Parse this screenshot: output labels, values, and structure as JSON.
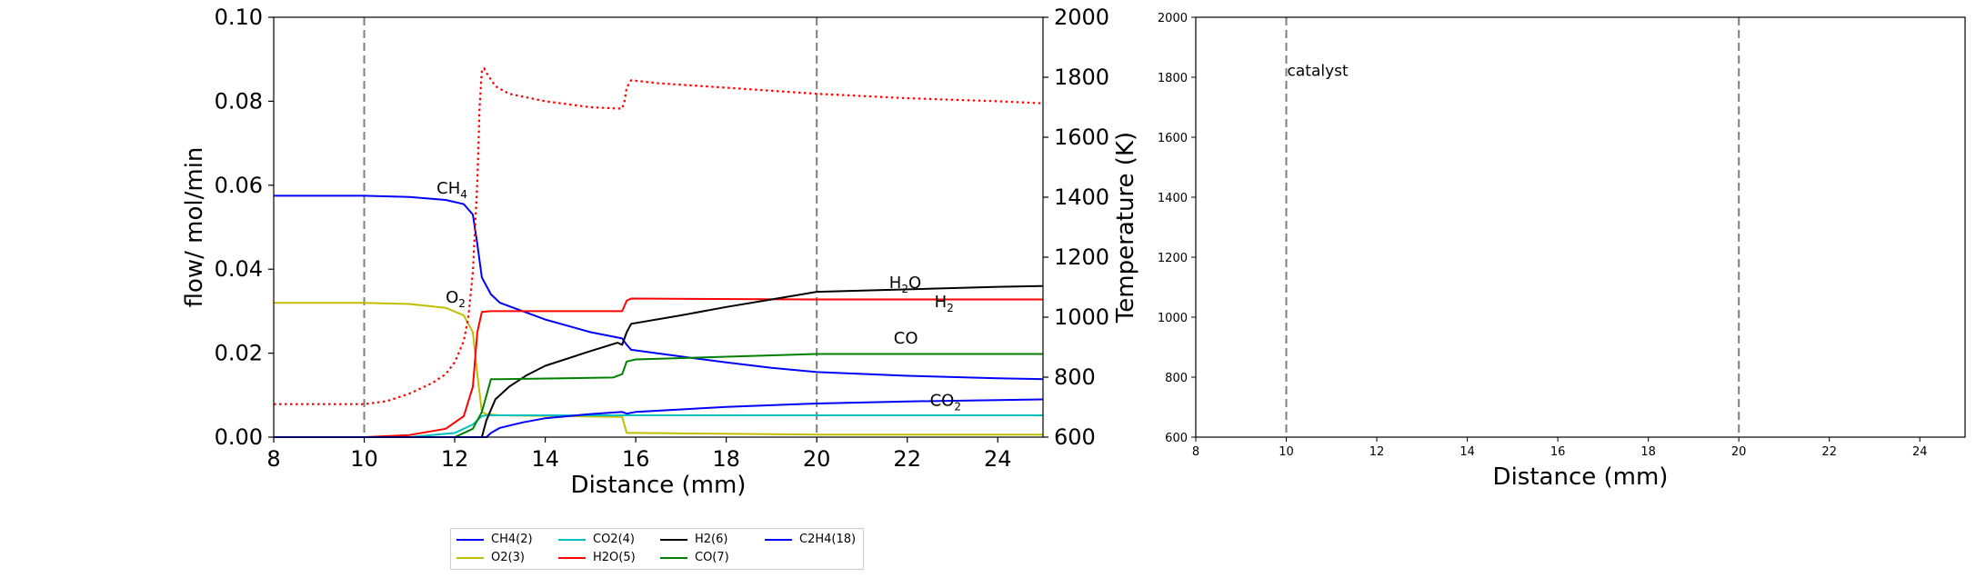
{
  "chart_data": [
    {
      "type": "line",
      "title": "",
      "xlabel": "Distance (mm)",
      "ylabel": "flow/ mol/min",
      "y2label": "Temperature (K)",
      "xlim": [
        8,
        25
      ],
      "ylim": [
        0,
        0.1
      ],
      "y2lim": [
        600,
        2000
      ],
      "xticks": [
        "8",
        "10",
        "12",
        "14",
        "16",
        "18",
        "20",
        "22",
        "24"
      ],
      "yticks": [
        "0.00",
        "0.02",
        "0.04",
        "0.06",
        "0.08",
        "0.10"
      ],
      "y2ticks": [
        "600",
        "800",
        "1000",
        "1200",
        "1400",
        "1600",
        "1800",
        "2000"
      ],
      "grid": false,
      "vlines": [
        10,
        20
      ],
      "series": [
        {
          "name": "CH4(2)",
          "color": "#0000ff",
          "style": "solid",
          "x": [
            8,
            10,
            11,
            11.8,
            12.2,
            12.4,
            12.5,
            12.6,
            12.8,
            13,
            14,
            15,
            15.7,
            15.8,
            15.9,
            17,
            18,
            19,
            20,
            22,
            24,
            25
          ],
          "y": [
            0.0575,
            0.0575,
            0.0572,
            0.0565,
            0.0555,
            0.053,
            0.046,
            0.038,
            0.034,
            0.032,
            0.028,
            0.025,
            0.0235,
            0.022,
            0.0208,
            0.0192,
            0.0178,
            0.0165,
            0.0155,
            0.0146,
            0.014,
            0.0138
          ]
        },
        {
          "name": "O2(3)",
          "color": "#bfbf00",
          "style": "solid",
          "x": [
            8,
            10,
            11,
            11.8,
            12.2,
            12.4,
            12.5,
            12.6,
            12.7,
            13,
            15.7,
            15.8,
            16,
            20,
            25
          ],
          "y": [
            0.032,
            0.032,
            0.0317,
            0.0308,
            0.029,
            0.025,
            0.015,
            0.006,
            0.0055,
            0.0052,
            0.0048,
            0.001,
            0.001,
            0.0006,
            0.0006
          ]
        },
        {
          "name": "CO2(4)",
          "color": "#00bfbf",
          "style": "solid",
          "x": [
            8,
            11,
            12,
            12.4,
            12.6,
            12.7,
            25
          ],
          "y": [
            0,
            0,
            0.001,
            0.003,
            0.005,
            0.0052,
            0.0052
          ]
        },
        {
          "name": "H2O(5)",
          "color": "#ff0000",
          "style": "solid",
          "x": [
            8,
            10,
            11,
            11.8,
            12.2,
            12.4,
            12.5,
            12.6,
            12.8,
            15.7,
            15.8,
            15.9,
            20,
            25
          ],
          "y": [
            0,
            0,
            0.0005,
            0.002,
            0.005,
            0.012,
            0.025,
            0.0298,
            0.03,
            0.03,
            0.0325,
            0.033,
            0.0328,
            0.0328
          ]
        },
        {
          "name": "H2(6)",
          "color": "#000000",
          "style": "solid",
          "x": [
            8,
            12.6,
            12.7,
            12.9,
            13.2,
            13.6,
            14,
            15,
            15.6,
            15.7,
            15.8,
            15.9,
            17,
            18,
            19,
            20,
            22,
            24,
            25
          ],
          "y": [
            0,
            0,
            0.004,
            0.009,
            0.012,
            0.0148,
            0.017,
            0.0205,
            0.0225,
            0.022,
            0.025,
            0.027,
            0.029,
            0.031,
            0.0328,
            0.0346,
            0.0352,
            0.0358,
            0.036
          ]
        },
        {
          "name": "CO(7)",
          "color": "#008000",
          "style": "solid",
          "x": [
            8,
            12,
            12.4,
            12.6,
            12.8,
            13,
            15.5,
            15.7,
            15.8,
            16,
            20,
            25
          ],
          "y": [
            0,
            0,
            0.002,
            0.006,
            0.0138,
            0.0138,
            0.0142,
            0.015,
            0.018,
            0.0185,
            0.0198,
            0.0198
          ]
        },
        {
          "name": "C2H4(18)",
          "color": "#0000ff",
          "style": "solid",
          "x": [
            8,
            12.7,
            12.8,
            13,
            13.5,
            14,
            15,
            15.7,
            15.8,
            16,
            18,
            20,
            22,
            24,
            25
          ],
          "y": [
            0,
            0,
            0.001,
            0.0022,
            0.0035,
            0.0045,
            0.0055,
            0.006,
            0.0056,
            0.006,
            0.0072,
            0.008,
            0.0085,
            0.0088,
            0.009
          ]
        },
        {
          "name": "",
          "color": "#ff0000",
          "style": "dotted",
          "axis": "y2",
          "x": [
            8,
            10,
            10.5,
            11,
            11.5,
            11.8,
            12.0,
            12.2,
            12.3,
            12.4,
            12.5,
            12.55,
            12.6,
            12.65,
            12.7,
            12.9,
            13.2,
            14,
            15,
            15.7,
            15.75,
            15.8,
            15.9,
            16.5,
            18,
            20,
            22,
            24,
            25
          ],
          "y": [
            710,
            710,
            720,
            745,
            780,
            810,
            850,
            920,
            1000,
            1150,
            1450,
            1700,
            1822,
            1830,
            1815,
            1770,
            1745,
            1720,
            1700,
            1695,
            1720,
            1765,
            1790,
            1780,
            1765,
            1745,
            1730,
            1720,
            1713
          ]
        }
      ],
      "annotations": [
        {
          "text": "CH",
          "sub": "4",
          "x": 11.6,
          "y": 0.058,
          "color": "#0000ff"
        },
        {
          "text": "O",
          "sub": "2",
          "x": 11.8,
          "y": 0.032,
          "color": "#bfbf00"
        },
        {
          "text": "H",
          "sub": "2",
          "x": 21.6,
          "y": 0.0355,
          "color": "#ff0000",
          "label": "H2O"
        },
        {
          "text": "H",
          "sub": "2",
          "x": 22.6,
          "y": 0.031,
          "color": "#000000"
        },
        {
          "text": "CO",
          "sub": "",
          "x": 21.7,
          "y": 0.0223,
          "color": "#008000"
        },
        {
          "text": "CO",
          "sub": "2",
          "x": 22.5,
          "y": 0.0075,
          "color": "#00bfbf"
        }
      ],
      "legend": {
        "placement": "bottom-center",
        "columns": 4
      },
      "legend_entries": [
        "CH4(2)",
        "CO2(4)",
        "H2(6)",
        "C2H4(18)",
        "O2(3)",
        "H2O(5)",
        "CO(7)"
      ]
    },
    {
      "type": "line",
      "title": "",
      "xlabel": "Distance (mm)",
      "ylabel": "",
      "xlim": [
        8,
        25
      ],
      "ylim": [
        600,
        2000
      ],
      "xticks": [
        "8",
        "10",
        "12",
        "14",
        "16",
        "18",
        "20",
        "22",
        "24"
      ],
      "yticks": [
        "600",
        "800",
        "1000",
        "1200",
        "1400",
        "1600",
        "1800",
        "2000"
      ],
      "grid": false,
      "vlines": [
        10,
        20
      ],
      "annotations": [
        {
          "text": "catalyst",
          "x": 10,
          "y": 1820
        }
      ],
      "series": []
    }
  ],
  "labels": {
    "h2o_label": "H₂O",
    "catalyst": "catalyst"
  }
}
